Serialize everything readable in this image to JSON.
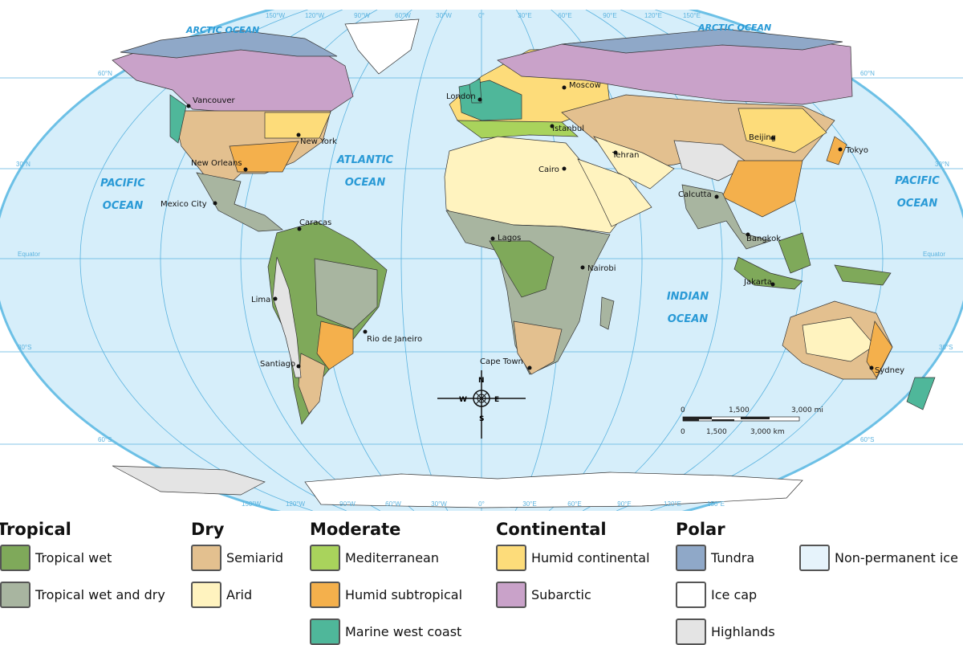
{
  "map": {
    "oceans": {
      "arctic_left": "ARCTIC OCEAN",
      "arctic_right": "ARCTIC OCEAN",
      "pacific_left": [
        "PACIFIC",
        "OCEAN"
      ],
      "atlantic": [
        "ATLANTIC",
        "OCEAN"
      ],
      "indian": [
        "INDIAN",
        "OCEAN"
      ],
      "pacific_right": [
        "PACIFIC",
        "OCEAN"
      ]
    },
    "longitudes": [
      "150°W",
      "120°W",
      "90°W",
      "60°W",
      "30°W",
      "0°",
      "30°E",
      "60°E",
      "90°E",
      "120°E",
      "150°E"
    ],
    "latitudes": {
      "n60": "60°N",
      "n30": "30°N",
      "equator": "Equator",
      "s30": "30°S",
      "s60": "60°S"
    },
    "cities": [
      "Vancouver",
      "New York",
      "New Orleans",
      "Mexico City",
      "Caracas",
      "Lima",
      "Rio de Janeiro",
      "Santiago",
      "London",
      "Moscow",
      "Istanbul",
      "Tehran",
      "Cairo",
      "Lagos",
      "Nairobi",
      "Cape Town",
      "Calcutta",
      "Beijing",
      "Bangkok",
      "Tokyo",
      "Jakarta",
      "Sydney"
    ],
    "compass": {
      "n": "N",
      "s": "S",
      "e": "E",
      "w": "W"
    },
    "scale": {
      "mi": [
        "0",
        "1,500",
        "3,000 mi"
      ],
      "km": [
        "0",
        "1,500",
        "3,000 km"
      ]
    },
    "colors": {
      "ocean": "#d6eefa",
      "graticule": "#5bb3df",
      "border": "#111111"
    }
  },
  "legend": {
    "groups": [
      {
        "title": "Tropical",
        "items": [
          {
            "label": "Tropical wet",
            "color": "#7fa95a"
          },
          {
            "label": "Tropical wet and dry",
            "color": "#a8b5a0"
          }
        ]
      },
      {
        "title": "Dry",
        "items": [
          {
            "label": "Semiarid",
            "color": "#e3c08f"
          },
          {
            "label": "Arid",
            "color": "#fff3bf"
          }
        ]
      },
      {
        "title": "Moderate",
        "items": [
          {
            "label": "Mediterranean",
            "color": "#a9d35c"
          },
          {
            "label": "Humid subtropical",
            "color": "#f4b04c"
          },
          {
            "label": "Marine west coast",
            "color": "#4fb79a"
          }
        ]
      },
      {
        "title": "Continental",
        "items": [
          {
            "label": "Humid continental",
            "color": "#fddc7a"
          },
          {
            "label": "Subarctic",
            "color": "#c9a2c9"
          }
        ]
      },
      {
        "title": "Polar",
        "items": [
          {
            "label": "Tundra",
            "color": "#8fa8c8"
          },
          {
            "label": "Ice cap",
            "color": "#ffffff"
          },
          {
            "label": "Highlands",
            "color": "#e4e4e4"
          }
        ]
      },
      {
        "title": "",
        "items": [
          {
            "label": "Non-permanent ice",
            "color": "#e6f3fb"
          }
        ]
      }
    ]
  }
}
